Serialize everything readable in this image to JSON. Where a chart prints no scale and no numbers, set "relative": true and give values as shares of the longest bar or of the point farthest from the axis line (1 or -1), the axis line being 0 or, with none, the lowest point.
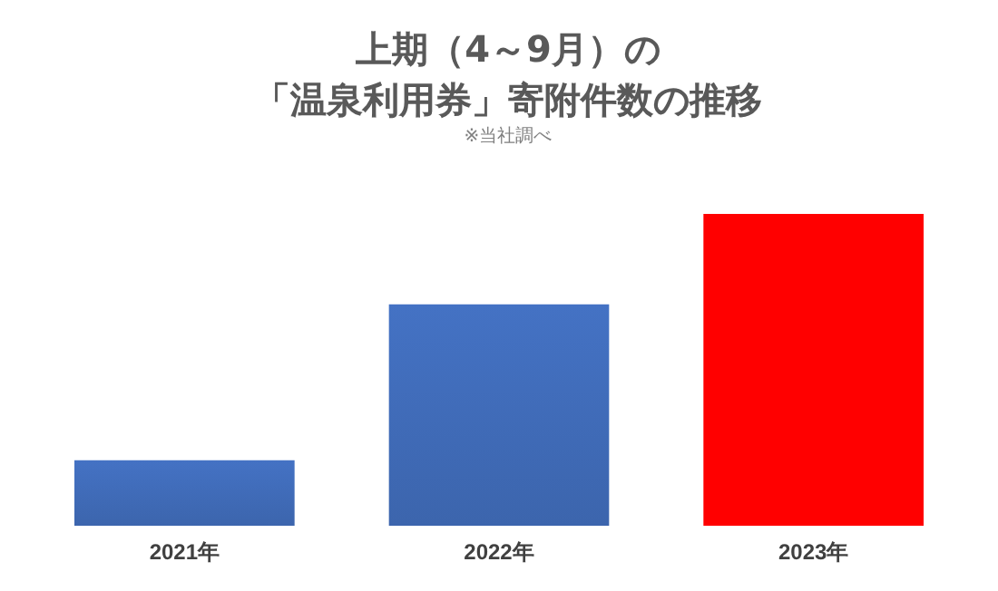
{
  "chart_data": {
    "type": "bar",
    "title": "上期（4～9月）の",
    "subtitle": "「温泉利用券」寄附件数の推移",
    "annotations": [
      "※当社調べ"
    ],
    "categories": [
      "2021年",
      "2022年",
      "2023年"
    ],
    "values": [
      0.21,
      0.71,
      1
    ],
    "colors": [
      "#4472c4",
      "#4472c4",
      "#ff0000"
    ],
    "relative": true
  }
}
